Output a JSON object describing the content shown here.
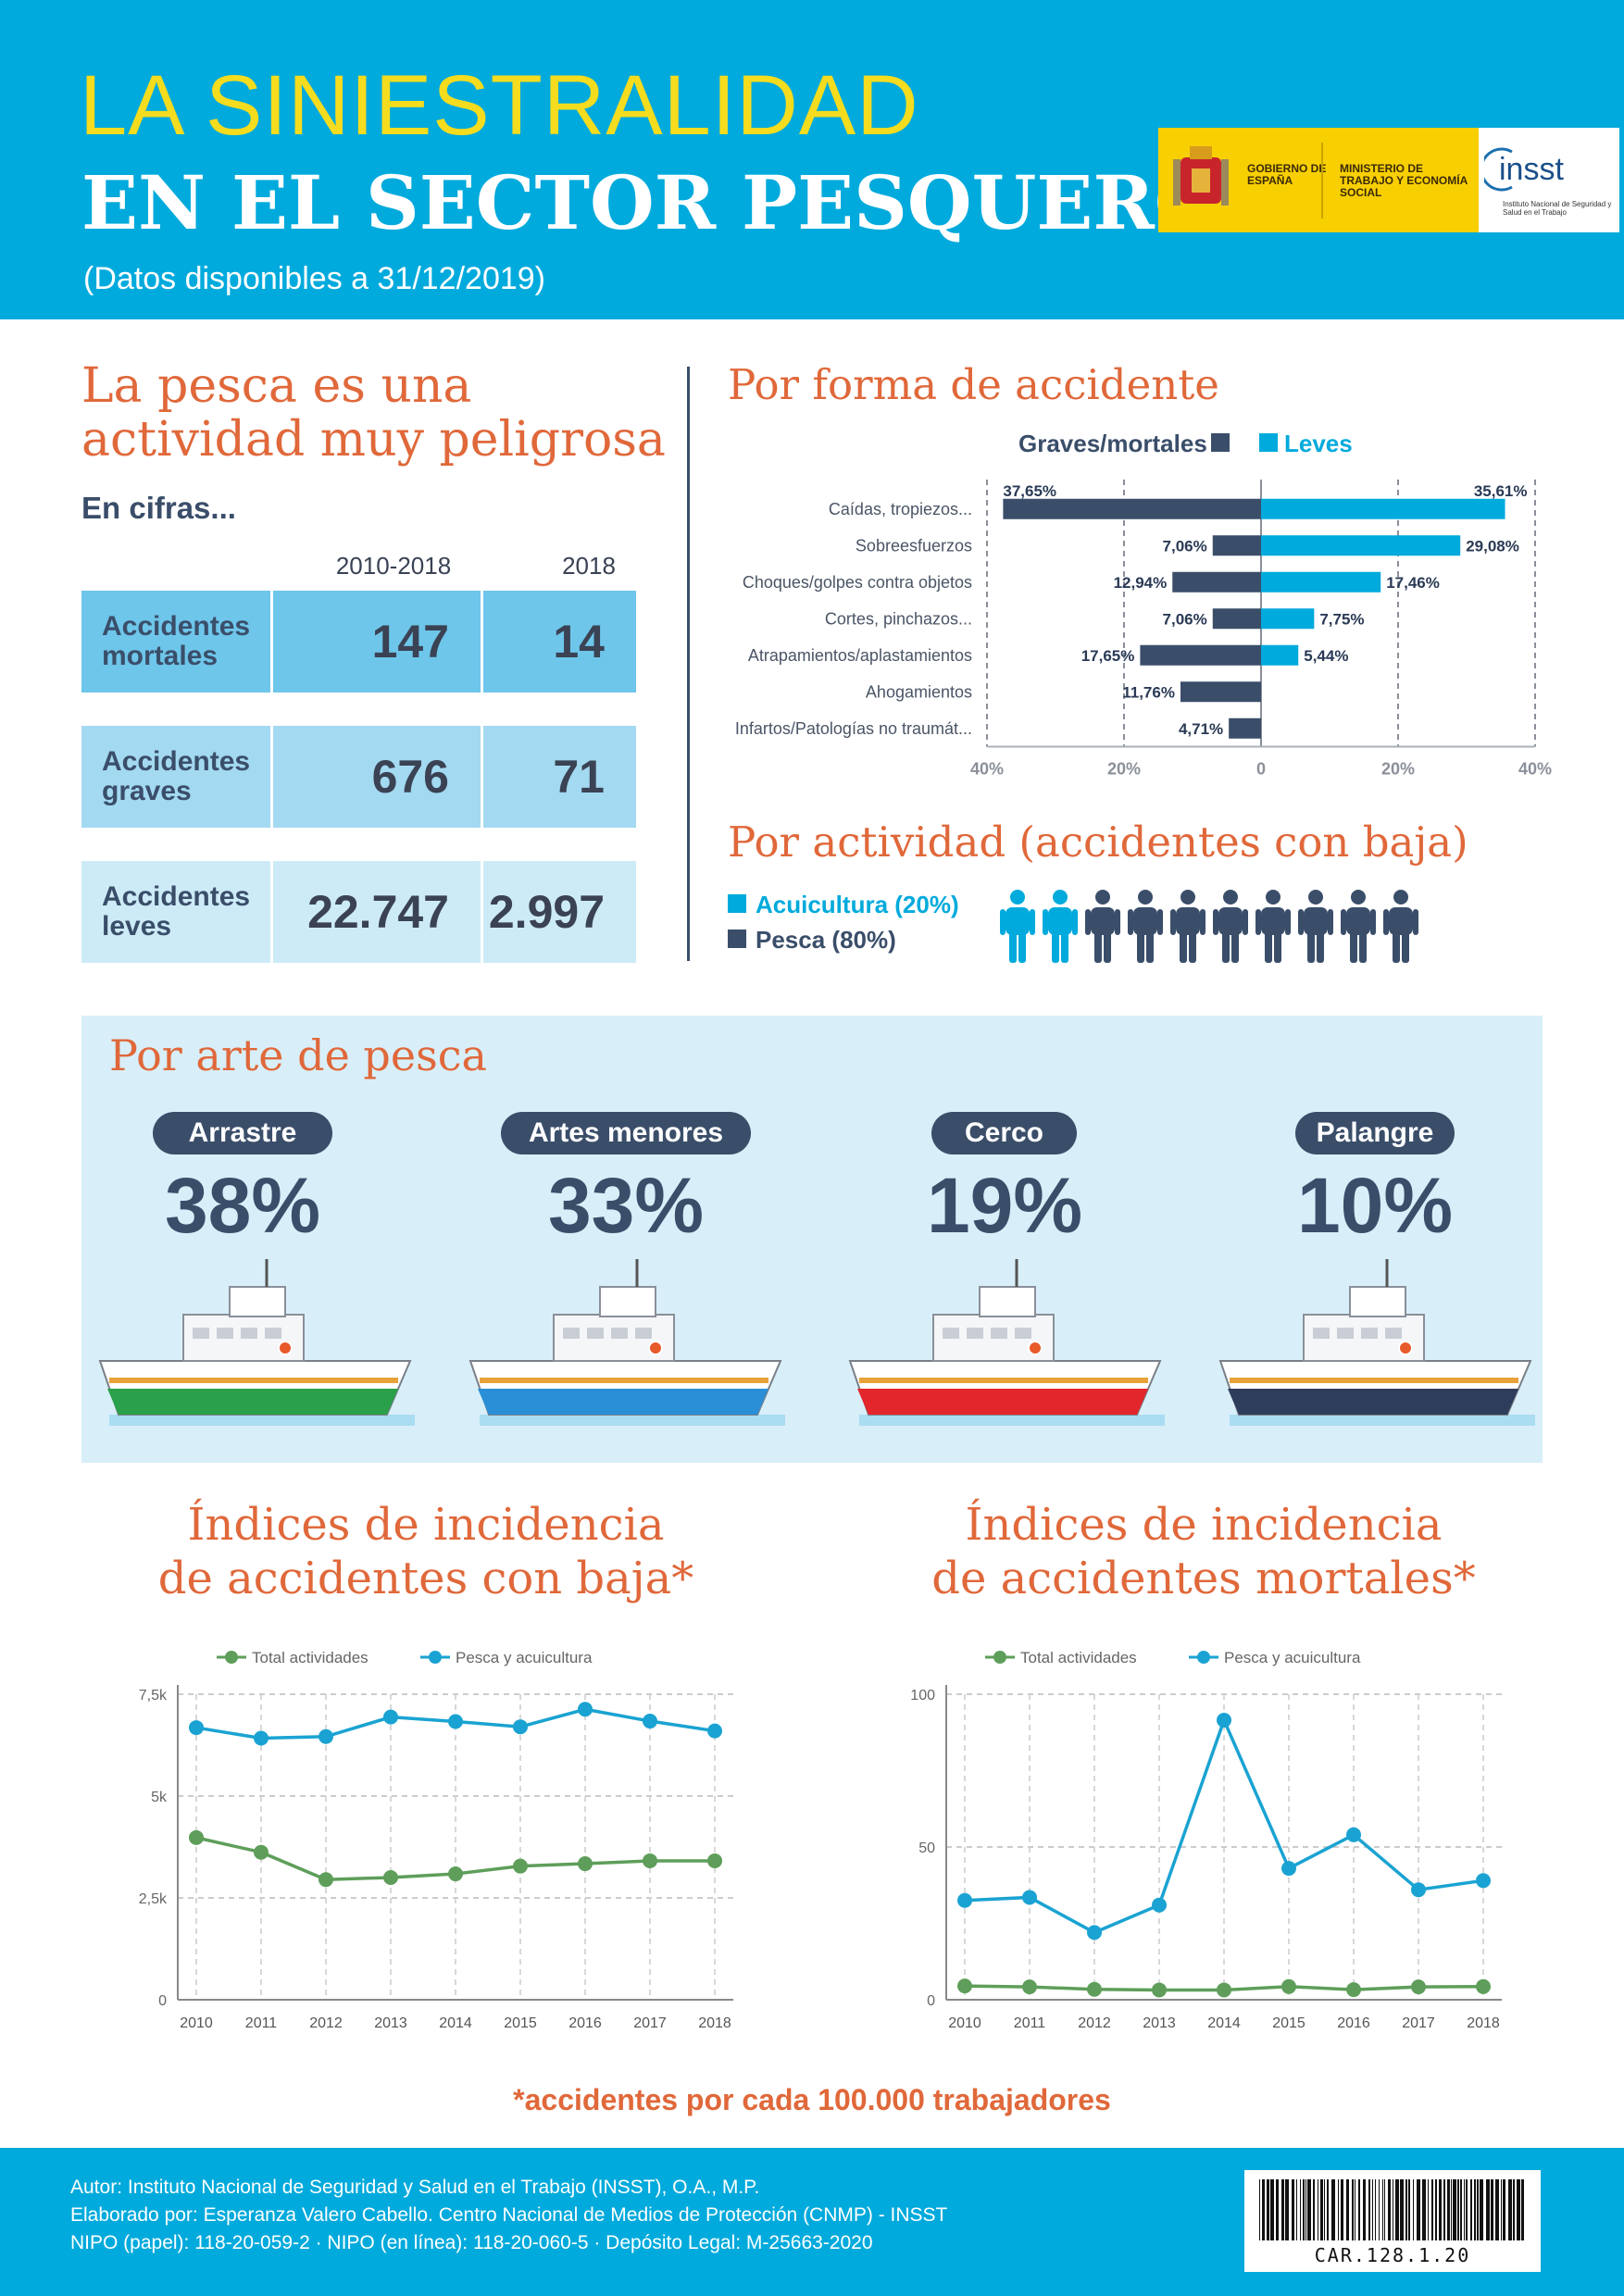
{
  "header": {
    "title_line1": "LA SINIESTRALIDAD",
    "title_line2": "EN EL SECTOR PESQUERO",
    "subtitle": "(Datos disponibles a 31/12/2019)",
    "logo_gov": "GOBIERNO DE ESPAÑA",
    "logo_ministry": "MINISTERIO DE TRABAJO Y ECONOMÍA SOCIAL",
    "logo_insst": "insst",
    "logo_insst_sub": "Instituto Nacional de Seguridad y Salud en el Trabajo"
  },
  "cifras": {
    "heading_line1": "La pesca es una",
    "heading_line2": "actividad muy peligrosa",
    "subheading": "En cifras...",
    "col1": "2010-2018",
    "col2": "2018",
    "rows": [
      {
        "label_line1": "Accidentes",
        "label_line2": "mortales",
        "v1": "147",
        "v2": "14"
      },
      {
        "label_line1": "Accidentes",
        "label_line2": "graves",
        "v1": "676",
        "v2": "71"
      },
      {
        "label_line1": "Accidentes",
        "label_line2": "leves",
        "v1": "22.747",
        "v2": "2.997"
      }
    ]
  },
  "forma": {
    "heading": "Por forma de accidente",
    "legend_graves": "Graves/mortales",
    "legend_leves": "Leves"
  },
  "actividad": {
    "heading": "Por actividad (accidentes con baja)",
    "legend_acui": "Acuicultura (20%)",
    "legend_pesca": "Pesca (80%)",
    "acuicultura_share": 20,
    "pesca_share": 80
  },
  "arte": {
    "heading": "Por arte de pesca",
    "items": [
      {
        "label": "Arrastre",
        "pct": "38%",
        "hull": "#2aa04a"
      },
      {
        "label": "Artes menores",
        "pct": "33%",
        "hull": "#2a8fd6"
      },
      {
        "label": "Cerco",
        "pct": "19%",
        "hull": "#e2262c"
      },
      {
        "label": "Palangre",
        "pct": "10%",
        "hull": "#2f3d5c"
      }
    ]
  },
  "incidencia_baja": {
    "heading_line1": "Índices de incidencia",
    "heading_line2": "de accidentes con baja*"
  },
  "incidencia_mortales": {
    "heading_line1": "Índices de incidencia",
    "heading_line2": "de accidentes mortales*"
  },
  "note": "*accidentes por cada 100.000 trabajadores",
  "footer": {
    "line1": "Autor: Instituto Nacional de Seguridad y Salud en el Trabajo (INSST), O.A., M.P.",
    "line2": "Elaborado por: Esperanza Valero Cabello. Centro Nacional de Medios de Protección (CNMP) - INSST",
    "line3": "NIPO (papel): 118-20-059-2   ·   NIPO (en línea): 118-20-060-5   ·   Depósito Legal: M-25663-2020",
    "barcode_text": "CAR.128.1.20"
  },
  "colors": {
    "dark": "#3a4e6a",
    "cyan": "#00aadc",
    "green": "#5e9e5a",
    "orange": "#e0683a",
    "yellow": "#f5dc1e"
  },
  "chart_data": [
    {
      "type": "bar",
      "orientation": "horizontal-diverging",
      "categories": [
        "Caídas, tropiezos...",
        "Sobreesfuerzos",
        "Choques/golpes contra objetos",
        "Cortes, pinchazos...",
        "Atrapamientos/aplastamientos",
        "Ahogamientos",
        "Infartos/Patologías no traumát..."
      ],
      "series": [
        {
          "name": "Graves/mortales",
          "color": "#3a4e6a",
          "values": [
            37.65,
            7.06,
            12.94,
            7.06,
            17.65,
            11.76,
            4.71
          ],
          "labels": [
            "37,65%",
            "7,06%",
            "12,94%",
            "7,06%",
            "17,65%",
            "11,76%",
            "4,71%"
          ]
        },
        {
          "name": "Leves",
          "color": "#00aadc",
          "values": [
            35.61,
            29.08,
            17.46,
            7.75,
            5.44,
            0,
            0
          ],
          "labels": [
            "35,61%",
            "29,08%",
            "17,46%",
            "7,75%",
            "5,44%",
            "",
            ""
          ]
        }
      ],
      "xlim": [
        -40,
        40
      ],
      "xticks": [
        "40%",
        "20%",
        "0",
        "20%",
        "40%"
      ],
      "grid": true
    },
    {
      "type": "line",
      "x": [
        "2010",
        "2011",
        "2012",
        "2013",
        "2014",
        "2015",
        "2016",
        "2017",
        "2018"
      ],
      "series": [
        {
          "name": "Total actividades",
          "color": "#5e9e5a",
          "values": [
            3980,
            3620,
            2950,
            3000,
            3090,
            3280,
            3340,
            3410,
            3410
          ]
        },
        {
          "name": "Pesca y acuicultura",
          "color": "#1aa3d2",
          "values": [
            6680,
            6420,
            6460,
            6940,
            6830,
            6700,
            7130,
            6840,
            6600
          ]
        }
      ],
      "ylim": [
        0,
        7500
      ],
      "yticks": [
        "0",
        "2,5k",
        "5k",
        "7,5k"
      ],
      "grid": true,
      "legend": "top"
    },
    {
      "type": "line",
      "x": [
        "2010",
        "2011",
        "2012",
        "2013",
        "2014",
        "2015",
        "2016",
        "2017",
        "2018"
      ],
      "series": [
        {
          "name": "Total actividades",
          "color": "#5e9e5a",
          "values": [
            4.5,
            4.2,
            3.4,
            3.2,
            3.2,
            4.3,
            3.3,
            4.2,
            4.3
          ]
        },
        {
          "name": "Pesca y acuicultura",
          "color": "#1aa3d2",
          "values": [
            32.5,
            33.5,
            22,
            31,
            91.5,
            43,
            54,
            36,
            39
          ]
        }
      ],
      "ylim": [
        0,
        100
      ],
      "yticks": [
        "0",
        "50",
        "100"
      ],
      "grid": true,
      "legend": "top"
    }
  ]
}
